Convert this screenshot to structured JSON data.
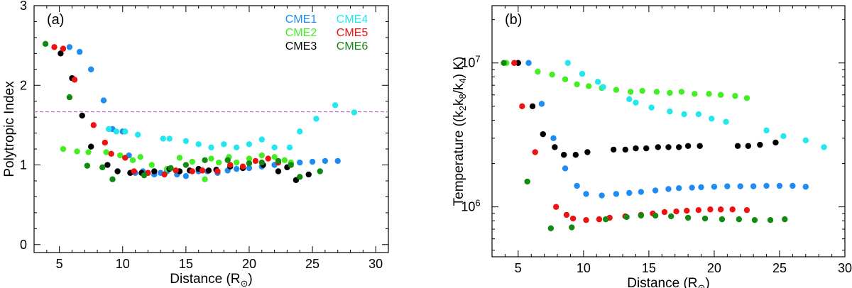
{
  "chart_data": [
    {
      "type": "scatter",
      "panel_label": "(a)",
      "xlabel": "Distance (R",
      "xlabel_suffix": ")",
      "ylabel": "Polytropic Index",
      "xlim": [
        3,
        31
      ],
      "ylim": [
        -0.1,
        3.0
      ],
      "xticks": [
        5,
        10,
        15,
        20,
        25,
        30
      ],
      "yticks": [
        0,
        1,
        2,
        3
      ],
      "yscale": "linear",
      "reference_line": {
        "y": 1.667,
        "style": "dashed",
        "color": "#c86ad0"
      },
      "series": [
        {
          "name": "CME1",
          "color": "#1e8cf0",
          "points": [
            [
              5.8,
              2.48
            ],
            [
              6.6,
              2.42
            ],
            [
              7.5,
              2.2
            ],
            [
              8.5,
              1.81
            ],
            [
              9.2,
              1.45
            ],
            [
              10.0,
              1.42
            ],
            [
              10.5,
              1.12
            ],
            [
              11.0,
              0.9
            ],
            [
              11.6,
              0.92
            ],
            [
              12.5,
              0.88
            ],
            [
              13.0,
              0.9
            ],
            [
              13.5,
              0.92
            ],
            [
              14.3,
              0.88
            ],
            [
              15.0,
              0.86
            ],
            [
              16.0,
              0.92
            ],
            [
              16.7,
              0.92
            ],
            [
              17.5,
              0.9
            ],
            [
              18.3,
              0.93
            ],
            [
              19.0,
              0.95
            ],
            [
              20.0,
              0.96
            ],
            [
              21.0,
              0.98
            ],
            [
              22.0,
              1.0
            ],
            [
              23.3,
              1.02
            ],
            [
              24.0,
              1.03
            ],
            [
              25.0,
              1.04
            ],
            [
              26.0,
              1.05
            ],
            [
              27.0,
              1.05
            ]
          ]
        },
        {
          "name": "CME2",
          "color": "#44ee22",
          "points": [
            [
              5.3,
              1.2
            ],
            [
              6.4,
              1.17
            ],
            [
              7.3,
              1.16
            ],
            [
              8.7,
              1.16
            ],
            [
              9.8,
              1.12
            ],
            [
              10.8,
              1.06
            ],
            [
              11.4,
              1.1
            ],
            [
              12.3,
              1.0
            ],
            [
              13.5,
              0.95
            ],
            [
              14.5,
              1.09
            ],
            [
              15.5,
              1.04
            ],
            [
              16.5,
              0.82
            ],
            [
              17.0,
              1.08
            ],
            [
              17.6,
              1.03
            ],
            [
              18.4,
              1.1
            ],
            [
              19.0,
              1.03
            ],
            [
              20.0,
              1.08
            ],
            [
              21.0,
              1.12
            ],
            [
              22.0,
              1.1
            ],
            [
              22.8,
              1.06
            ],
            [
              23.3,
              1.03
            ]
          ]
        },
        {
          "name": "CME3",
          "color": "#000000",
          "points": [
            [
              5.1,
              2.4
            ],
            [
              6.0,
              2.09
            ],
            [
              6.8,
              1.62
            ],
            [
              7.5,
              1.23
            ],
            [
              8.8,
              1.0
            ],
            [
              9.6,
              0.92
            ],
            [
              10.6,
              0.9
            ],
            [
              11.5,
              0.9
            ],
            [
              12.5,
              0.92
            ],
            [
              13.7,
              0.95
            ],
            [
              14.5,
              0.92
            ],
            [
              15.3,
              0.93
            ],
            [
              16.0,
              0.95
            ],
            [
              16.8,
              0.93
            ],
            [
              17.4,
              0.94
            ],
            [
              18.5,
              0.98
            ],
            [
              19.5,
              0.96
            ],
            [
              21.1,
              1.0
            ],
            [
              22.3,
              0.92
            ],
            [
              23.0,
              0.97
            ],
            [
              23.7,
              0.81
            ],
            [
              24.7,
              0.88
            ]
          ]
        },
        {
          "name": "CME4",
          "color": "#22e8ee",
          "points": [
            [
              8.9,
              1.45
            ],
            [
              9.5,
              1.42
            ],
            [
              10.2,
              1.42
            ],
            [
              11.2,
              1.38
            ],
            [
              12.0,
              0.9
            ],
            [
              13.2,
              1.33
            ],
            [
              13.7,
              1.33
            ],
            [
              15.0,
              1.3
            ],
            [
              16.0,
              1.26
            ],
            [
              17.0,
              1.22
            ],
            [
              18.0,
              1.26
            ],
            [
              19.0,
              1.22
            ],
            [
              20.0,
              1.26
            ],
            [
              21.0,
              1.32
            ],
            [
              22.0,
              1.22
            ],
            [
              23.2,
              1.22
            ],
            [
              24.0,
              1.42
            ],
            [
              25.3,
              1.58
            ],
            [
              26.8,
              1.75
            ],
            [
              28.3,
              1.66
            ]
          ]
        },
        {
          "name": "CME5",
          "color": "#ee1111",
          "points": [
            [
              4.6,
              2.48
            ],
            [
              5.3,
              2.46
            ],
            [
              6.2,
              2.07
            ],
            [
              7.7,
              1.5
            ],
            [
              8.6,
              1.28
            ],
            [
              9.1,
              1.14
            ],
            [
              10.2,
              1.09
            ],
            [
              10.9,
              0.92
            ],
            [
              12.0,
              0.9
            ],
            [
              13.3,
              0.88
            ],
            [
              14.2,
              0.93
            ],
            [
              15.5,
              0.92
            ],
            [
              16.3,
              0.93
            ],
            [
              17.5,
              0.92
            ],
            [
              18.5,
              1.0
            ],
            [
              19.5,
              0.98
            ],
            [
              20.5,
              1.05
            ],
            [
              21.5,
              1.08
            ],
            [
              22.3,
              1.03
            ]
          ]
        },
        {
          "name": "CME6",
          "color": "#128a12",
          "points": [
            [
              3.9,
              2.52
            ],
            [
              5.8,
              1.85
            ],
            [
              7.2,
              0.99
            ],
            [
              8.4,
              0.97
            ],
            [
              9.2,
              0.82
            ],
            [
              11.7,
              0.87
            ],
            [
              13.8,
              0.96
            ],
            [
              15.0,
              1.0
            ],
            [
              16.5,
              1.06
            ],
            [
              18.3,
              1.06
            ],
            [
              20.0,
              1.02
            ],
            [
              21.0,
              1.03
            ],
            [
              22.3,
              1.05
            ],
            [
              23.3,
              1.0
            ],
            [
              24.0,
              0.85
            ],
            [
              25.6,
              0.92
            ]
          ]
        }
      ]
    },
    {
      "type": "scatter",
      "panel_label": "(b)",
      "xlabel": "Distance (R",
      "xlabel_suffix": ")",
      "ylabel": "Temperature ((k₂k₈/k₄) K)",
      "xlim": [
        3,
        30
      ],
      "ylim": [
        450000,
        25000000
      ],
      "yscale": "log",
      "xticks": [
        5,
        10,
        15,
        20,
        25,
        30
      ],
      "yticks": [
        {
          "value": 1000000,
          "base": "10",
          "exp": "6"
        },
        {
          "value": 10000000,
          "base": "10",
          "exp": "7"
        }
      ],
      "series": [
        {
          "name": "CME1",
          "color": "#1e8cf0",
          "points": [
            [
              5.8,
              10000000
            ],
            [
              6.8,
              5200000
            ],
            [
              7.7,
              3000000
            ],
            [
              8.6,
              1850000
            ],
            [
              9.5,
              1400000
            ],
            [
              10.2,
              1230000
            ],
            [
              11.4,
              1200000
            ],
            [
              12.5,
              1230000
            ],
            [
              13.5,
              1250000
            ],
            [
              14.4,
              1270000
            ],
            [
              15.5,
              1300000
            ],
            [
              16.5,
              1330000
            ],
            [
              17.3,
              1350000
            ],
            [
              18.3,
              1360000
            ],
            [
              19.0,
              1370000
            ],
            [
              20.0,
              1380000
            ],
            [
              21.0,
              1390000
            ],
            [
              22.0,
              1390000
            ],
            [
              23.0,
              1390000
            ],
            [
              24.0,
              1400000
            ],
            [
              25.0,
              1400000
            ],
            [
              26.0,
              1400000
            ],
            [
              27.0,
              1380000
            ]
          ]
        },
        {
          "name": "CME2",
          "color": "#44ee22",
          "points": [
            [
              4.1,
              10000000
            ],
            [
              6.5,
              8700000
            ],
            [
              7.6,
              8300000
            ],
            [
              8.6,
              7700000
            ],
            [
              9.5,
              7100000
            ],
            [
              10.4,
              6900000
            ],
            [
              11.4,
              6700000
            ],
            [
              12.5,
              6500000
            ],
            [
              13.6,
              6300000
            ],
            [
              14.5,
              6400000
            ],
            [
              15.6,
              6300000
            ],
            [
              16.6,
              6200000
            ],
            [
              17.5,
              6300000
            ],
            [
              18.5,
              6100000
            ],
            [
              19.6,
              6100000
            ],
            [
              20.5,
              6000000
            ],
            [
              21.6,
              5900000
            ],
            [
              22.5,
              5700000
            ]
          ]
        },
        {
          "name": "CME3",
          "color": "#000000",
          "points": [
            [
              5.0,
              10000000
            ],
            [
              6.1,
              5000000
            ],
            [
              6.9,
              3200000
            ],
            [
              7.8,
              2600000
            ],
            [
              8.5,
              2300000
            ],
            [
              9.4,
              2300000
            ],
            [
              10.3,
              2400000
            ],
            [
              12.3,
              2500000
            ],
            [
              13.2,
              2500000
            ],
            [
              14.0,
              2550000
            ],
            [
              14.8,
              2550000
            ],
            [
              15.7,
              2600000
            ],
            [
              16.5,
              2600000
            ],
            [
              17.3,
              2600000
            ],
            [
              18.0,
              2650000
            ],
            [
              18.9,
              2650000
            ],
            [
              21.8,
              2650000
            ],
            [
              22.6,
              2650000
            ],
            [
              23.5,
              2700000
            ],
            [
              24.7,
              2800000
            ]
          ]
        },
        {
          "name": "CME4",
          "color": "#22e8ee",
          "points": [
            [
              8.8,
              10000000
            ],
            [
              9.9,
              8400000
            ],
            [
              11.1,
              7400000
            ],
            [
              11.5,
              6800000
            ],
            [
              13.5,
              5600000
            ],
            [
              14.0,
              5300000
            ],
            [
              15.2,
              4900000
            ],
            [
              16.6,
              4600000
            ],
            [
              17.7,
              4400000
            ],
            [
              18.8,
              4400000
            ],
            [
              19.8,
              4100000
            ],
            [
              20.9,
              3900000
            ],
            [
              24.0,
              3400000
            ],
            [
              25.3,
              3100000
            ],
            [
              27.0,
              2900000
            ],
            [
              28.4,
              2600000
            ]
          ]
        },
        {
          "name": "CME5",
          "color": "#ee1111",
          "points": [
            [
              4.7,
              10000000
            ],
            [
              5.3,
              5000000
            ],
            [
              6.3,
              2400000
            ],
            [
              7.9,
              1000000
            ],
            [
              8.7,
              880000
            ],
            [
              9.2,
              830000
            ],
            [
              10.2,
              810000
            ],
            [
              11.2,
              820000
            ],
            [
              12.0,
              840000
            ],
            [
              13.2,
              860000
            ],
            [
              14.4,
              880000
            ],
            [
              15.3,
              900000
            ],
            [
              16.2,
              920000
            ],
            [
              17.1,
              930000
            ],
            [
              17.9,
              940000
            ],
            [
              18.8,
              950000
            ],
            [
              19.7,
              960000
            ],
            [
              20.5,
              960000
            ],
            [
              21.4,
              960000
            ],
            [
              22.5,
              950000
            ]
          ]
        },
        {
          "name": "CME6",
          "color": "#128a12",
          "points": [
            [
              3.9,
              10000000
            ],
            [
              5.7,
              1500000
            ],
            [
              7.5,
              710000
            ],
            [
              9.1,
              720000
            ],
            [
              11.7,
              820000
            ],
            [
              13.3,
              850000
            ],
            [
              14.4,
              870000
            ],
            [
              15.5,
              870000
            ],
            [
              16.7,
              860000
            ],
            [
              18.0,
              840000
            ],
            [
              19.3,
              830000
            ],
            [
              20.6,
              820000
            ],
            [
              21.9,
              820000
            ],
            [
              23.1,
              810000
            ],
            [
              24.3,
              810000
            ],
            [
              25.4,
              820000
            ]
          ]
        }
      ]
    }
  ],
  "sun_symbol": "⊙",
  "legend": [
    {
      "label": "CME1",
      "color": "#1e8cf0"
    },
    {
      "label": "CME4",
      "color": "#22e8ee"
    },
    {
      "label": "CME2",
      "color": "#44ee22"
    },
    {
      "label": "CME5",
      "color": "#ee1111"
    },
    {
      "label": "CME3",
      "color": "#000000"
    },
    {
      "label": "CME6",
      "color": "#128a12"
    }
  ]
}
